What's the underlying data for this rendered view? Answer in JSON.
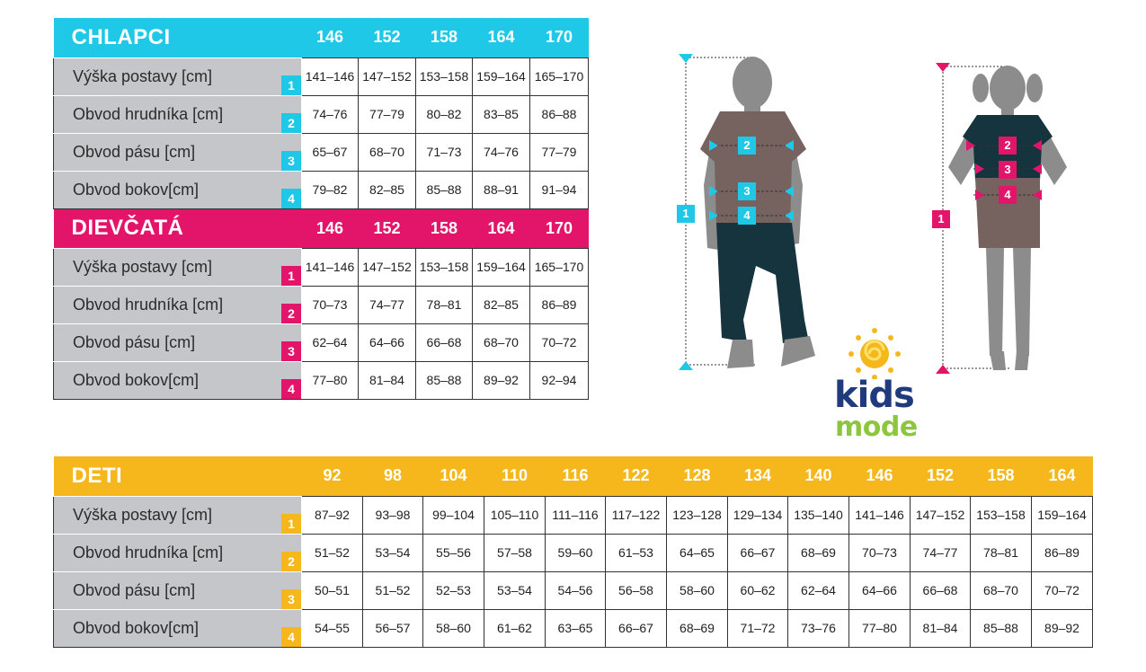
{
  "boys": {
    "title": "CHLAPCI",
    "sizes": [
      "146",
      "152",
      "158",
      "164",
      "170"
    ],
    "rows": [
      {
        "label": "Výška postavy [cm]",
        "num": "1",
        "values": [
          "141–146",
          "147–152",
          "153–158",
          "159–164",
          "165–170"
        ]
      },
      {
        "label": "Obvod hrudníka [cm]",
        "num": "2",
        "values": [
          "74–76",
          "77–79",
          "80–82",
          "83–85",
          "86–88"
        ]
      },
      {
        "label": "Obvod pásu [cm]",
        "num": "3",
        "values": [
          "65–67",
          "68–70",
          "71–73",
          "74–76",
          "77–79"
        ]
      },
      {
        "label": "Obvod bokov[cm]",
        "num": "4",
        "values": [
          "79–82",
          "82–85",
          "85–88",
          "88–91",
          "91–94"
        ]
      }
    ]
  },
  "girls": {
    "title": "DIEVČATÁ",
    "sizes": [
      "146",
      "152",
      "158",
      "164",
      "170"
    ],
    "rows": [
      {
        "label": "Výška postavy [cm]",
        "num": "1",
        "values": [
          "141–146",
          "147–152",
          "153–158",
          "159–164",
          "165–170"
        ]
      },
      {
        "label": "Obvod hrudníka [cm]",
        "num": "2",
        "values": [
          "70–73",
          "74–77",
          "78–81",
          "82–85",
          "86–89"
        ]
      },
      {
        "label": "Obvod pásu [cm]",
        "num": "3",
        "values": [
          "62–64",
          "64–66",
          "66–68",
          "68–70",
          "70–72"
        ]
      },
      {
        "label": "Obvod bokov[cm]",
        "num": "4",
        "values": [
          "77–80",
          "81–84",
          "85–88",
          "89–92",
          "92–94"
        ]
      }
    ]
  },
  "kids": {
    "title": "DETI",
    "sizes": [
      "92",
      "98",
      "104",
      "110",
      "116",
      "122",
      "128",
      "134",
      "140",
      "146",
      "152",
      "158",
      "164"
    ],
    "rows": [
      {
        "label": "Výška postavy [cm]",
        "num": "1",
        "values": [
          "87–92",
          "93–98",
          "99–104",
          "105–110",
          "111–116",
          "117–122",
          "123–128",
          "129–134",
          "135–140",
          "141–146",
          "147–152",
          "153–158",
          "159–164"
        ]
      },
      {
        "label": "Obvod hrudníka [cm]",
        "num": "2",
        "values": [
          "51–52",
          "53–54",
          "55–56",
          "57–58",
          "59–60",
          "61–53",
          "64–65",
          "66–67",
          "68–69",
          "70–73",
          "74–77",
          "78–81",
          "86–89"
        ]
      },
      {
        "label": "Obvod pásu [cm]",
        "num": "3",
        "values": [
          "50–51",
          "51–52",
          "52–53",
          "53–54",
          "54–56",
          "56–58",
          "58–60",
          "60–62",
          "62–64",
          "64–66",
          "66–68",
          "68–70",
          "70–72"
        ]
      },
      {
        "label": "Obvod bokov[cm]",
        "num": "4",
        "values": [
          "54–55",
          "56–57",
          "58–60",
          "61–62",
          "63–65",
          "66–67",
          "68–69",
          "71–72",
          "73–76",
          "77–80",
          "81–84",
          "85–88",
          "89–92"
        ]
      }
    ]
  },
  "figures": {
    "boy_markers": [
      "1",
      "2",
      "3",
      "4"
    ],
    "girl_markers": [
      "1",
      "2",
      "3",
      "4"
    ]
  },
  "logo": {
    "line1": "kids",
    "line2": "mode"
  },
  "colors": {
    "boys": "#1ec8e6",
    "girls": "#e3156a",
    "kids": "#f6b71d",
    "label_bg": "#c4c6c9"
  }
}
